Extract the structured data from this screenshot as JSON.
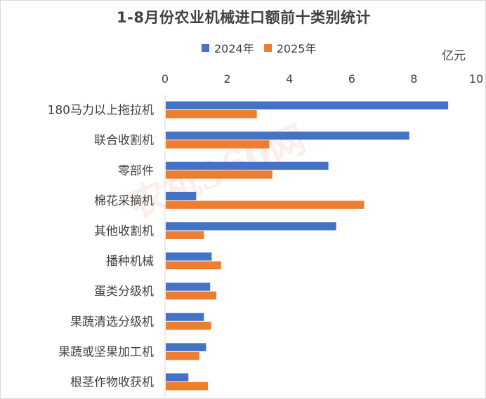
{
  "chart_data": {
    "type": "bar",
    "orientation": "horizontal",
    "title": "1-8月份农业机械进口额前十类别统计",
    "unit": "亿元",
    "categories": [
      "180马力以上拖拉机",
      "联合收割机",
      "零部件",
      "棉花采摘机",
      "其他收割机",
      "播种机械",
      "蛋类分级机",
      "果蔬清选分级机",
      "果蔬或坚果加工机",
      "根茎作物收获机"
    ],
    "series": [
      {
        "name": "2024年",
        "color": "#4472c4",
        "values": [
          9.1,
          7.85,
          5.25,
          1.0,
          5.5,
          1.5,
          1.45,
          1.25,
          1.32,
          0.75
        ]
      },
      {
        "name": "2025年",
        "color": "#ed7d31",
        "values": [
          2.95,
          3.35,
          3.45,
          6.4,
          1.25,
          1.8,
          1.65,
          1.48,
          1.1,
          1.38
        ]
      }
    ],
    "xlim": [
      0,
      10
    ],
    "xticks": [
      "0",
      "2",
      "4",
      "6",
      "8",
      "10"
    ],
    "axis_position": "top",
    "grid": false,
    "legend_position": "top"
  },
  "watermark": {
    "text": "农机360网",
    "color": "#f4a58a"
  }
}
